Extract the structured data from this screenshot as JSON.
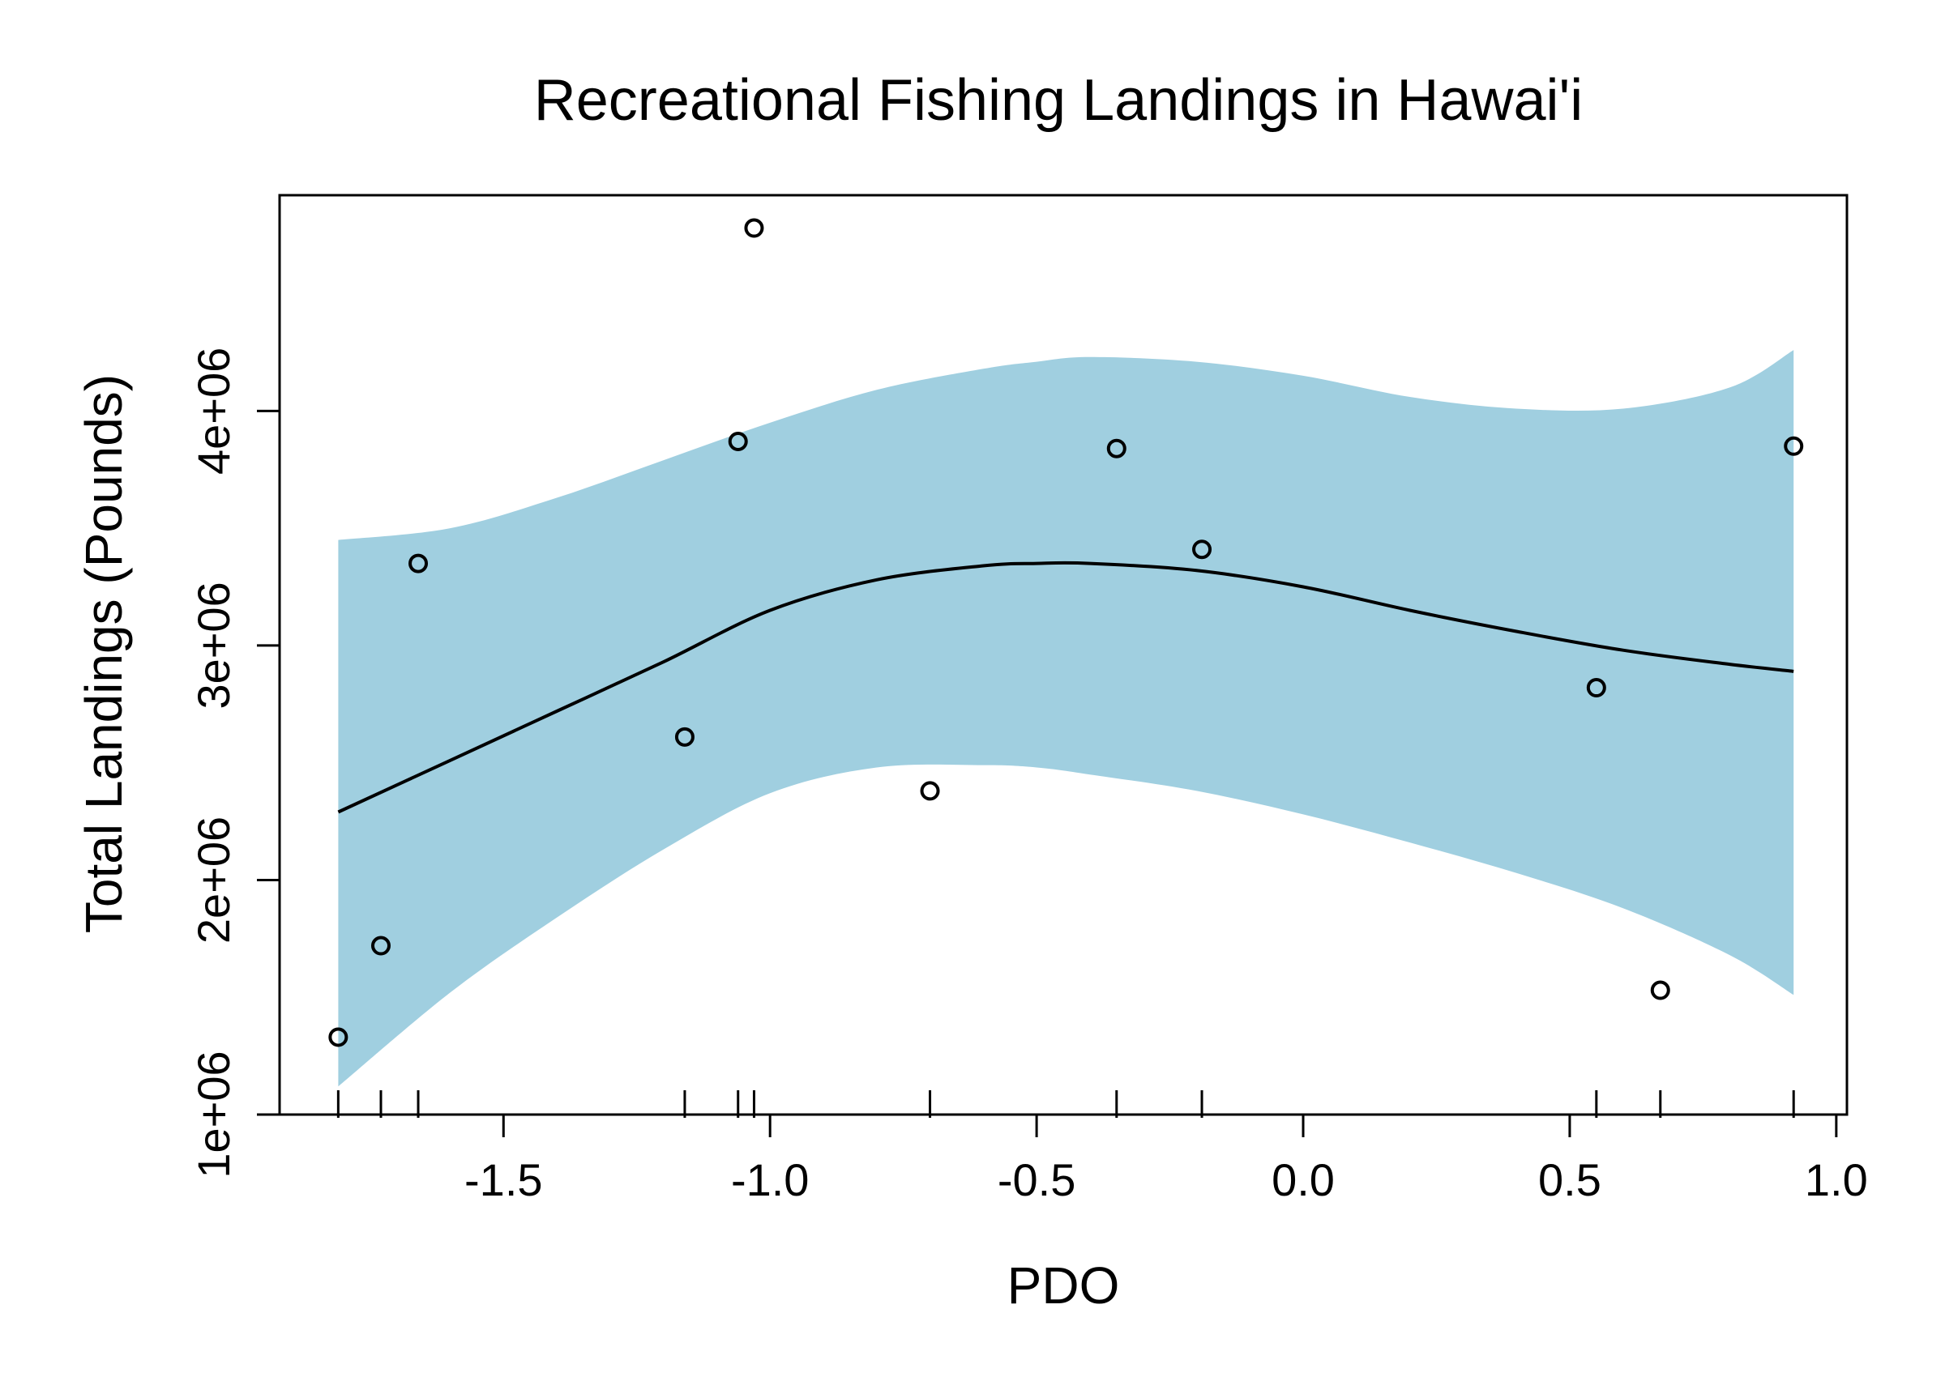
{
  "chart_data": {
    "type": "scatter",
    "title": "Recreational Fishing Landings in Hawai'i",
    "xlabel": "PDO",
    "ylabel": "Total Landings (Pounds)",
    "xlim": [
      -1.92,
      1.02
    ],
    "ylim": [
      1000000,
      4920000
    ],
    "x_ticks": [
      -1.5,
      -1.0,
      -0.5,
      0.0,
      0.5,
      1.0
    ],
    "x_tick_labels": [
      "-1.5",
      "-1.0",
      "-0.5",
      "0.0",
      "0.5",
      "1.0"
    ],
    "y_ticks": [
      1000000,
      2000000,
      3000000,
      4000000
    ],
    "y_tick_labels": [
      "1e+06",
      "2e+06",
      "3e+06",
      "4e+06"
    ],
    "points": [
      {
        "x": -1.81,
        "y": 1330000
      },
      {
        "x": -1.73,
        "y": 1720000
      },
      {
        "x": -1.66,
        "y": 3350000
      },
      {
        "x": -1.16,
        "y": 2610000
      },
      {
        "x": -1.06,
        "y": 3870000
      },
      {
        "x": -1.03,
        "y": 4780000
      },
      {
        "x": -0.7,
        "y": 2380000
      },
      {
        "x": -0.35,
        "y": 3840000
      },
      {
        "x": -0.19,
        "y": 3410000
      },
      {
        "x": 0.55,
        "y": 2820000
      },
      {
        "x": 0.67,
        "y": 1530000
      },
      {
        "x": 0.92,
        "y": 3850000
      }
    ],
    "fit": {
      "x": [
        -1.81,
        -1.6,
        -1.4,
        -1.2,
        -1.0,
        -0.8,
        -0.6,
        -0.5,
        -0.4,
        -0.2,
        0.0,
        0.2,
        0.4,
        0.6,
        0.8,
        0.92
      ],
      "y": [
        2290000,
        2510000,
        2720000,
        2930000,
        3150000,
        3280000,
        3340000,
        3350000,
        3350000,
        3320000,
        3250000,
        3150000,
        3060000,
        2980000,
        2920000,
        2890000
      ],
      "lower": [
        1120000,
        1520000,
        1840000,
        2130000,
        2370000,
        2480000,
        2490000,
        2480000,
        2450000,
        2380000,
        2280000,
        2160000,
        2030000,
        1880000,
        1680000,
        1510000
      ],
      "upper": [
        3450000,
        3500000,
        3630000,
        3790000,
        3950000,
        4090000,
        4180000,
        4210000,
        4230000,
        4210000,
        4150000,
        4060000,
        4010000,
        4010000,
        4100000,
        4260000
      ]
    },
    "band_color": "#a0cfe0",
    "line_color": "#000000",
    "grid": false,
    "rug": true
  }
}
